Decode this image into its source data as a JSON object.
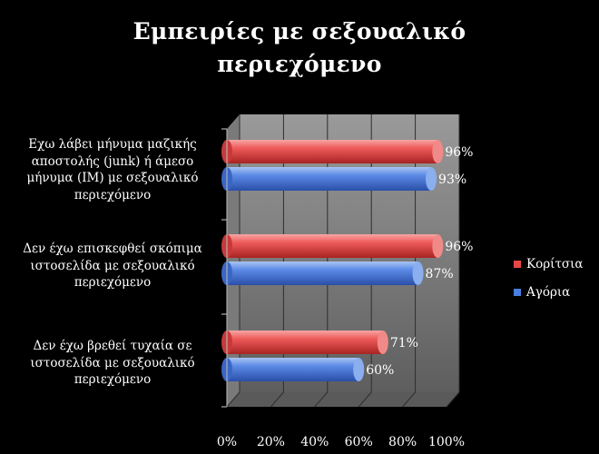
{
  "chart_data": {
    "type": "bar",
    "orientation": "horizontal",
    "title": "Εμπειρίες με σεξουαλικό περιεχόμενο",
    "title_lines": [
      "Εμπειρίες με σεξουαλικό",
      "περιεχόμενο"
    ],
    "categories": [
      "Εχω λάβει μήνυμα μαζικής αποστολής (junk) ή άμεσο μήνυμα (IM) με σεξουαλικό περιεχόμενο",
      "Δεν έχω επισκεφθεί σκόπιμα ιστοσελίδα με σεξουαλικό περιεχόμενο",
      "Δεν έχω βρεθεί τυχαία σε ιστοσελίδα με σεξουαλικό περιεχόμενο"
    ],
    "category_lines": [
      [
        "Εχω λάβει μήνυμα μαζικής",
        "αποστολής (junk) ή άμεσο",
        "μήνυμα (IM) με σεξουαλικό",
        "περιεχόμενο"
      ],
      [
        "Δεν έχω επισκεφθεί σκόπιμα",
        "ιστοσελίδα με σεξουαλικό",
        "περιεχόμενο"
      ],
      [
        "Δεν έχω βρεθεί τυχαία σε",
        "ιστοσελίδα με σεξουαλικό",
        "περιεχόμενο"
      ]
    ],
    "series": [
      {
        "name": "Κορίτσια",
        "values": [
          96,
          96,
          71
        ],
        "labels": [
          "96%",
          "96%",
          "71%"
        ],
        "color": "#e8474a"
      },
      {
        "name": "Αγόρια",
        "values": [
          93,
          87,
          60
        ],
        "labels": [
          "93%",
          "87%",
          "60%"
        ],
        "color": "#4a7de0"
      }
    ],
    "xlim": [
      0,
      100
    ],
    "xticks": [
      "0%",
      "20%",
      "40%",
      "60%",
      "80%",
      "100%"
    ],
    "grid": true,
    "legend_position": "right",
    "background": "#000000",
    "wall_color": "#8a8a8a"
  }
}
